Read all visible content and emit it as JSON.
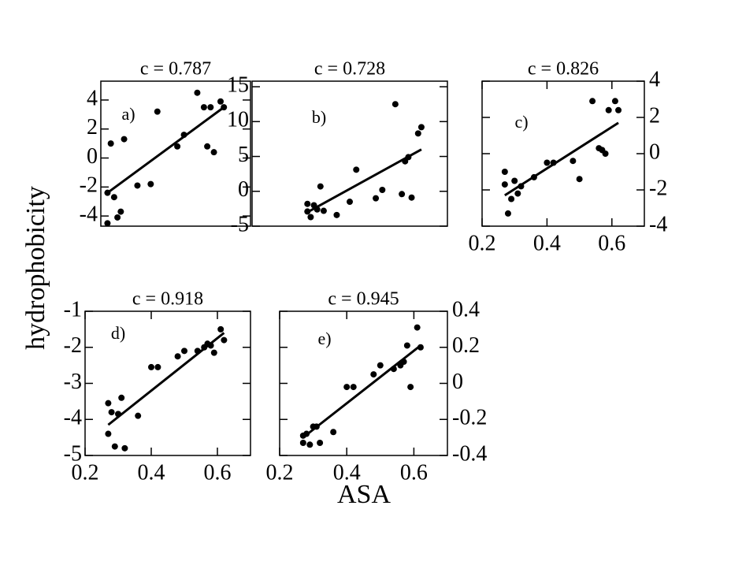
{
  "figure": {
    "xlabel": "ASA",
    "ylabel": "hydrophobicity"
  },
  "chart_data": [
    {
      "type": "scatter",
      "title": "c = 0.787",
      "label": "a)",
      "color": "#000000",
      "yaxis_side": "left",
      "xlim": [
        0.25,
        0.7
      ],
      "ylim": [
        -4.7,
        5.3
      ],
      "yticks": [
        -4,
        -2,
        0,
        2,
        4
      ],
      "x": [
        0.27,
        0.27,
        0.28,
        0.29,
        0.3,
        0.31,
        0.32,
        0.36,
        0.4,
        0.42,
        0.48,
        0.5,
        0.54,
        0.56,
        0.57,
        0.58,
        0.59,
        0.61,
        0.62
      ],
      "values": [
        -2.4,
        -4.5,
        1.0,
        -2.7,
        -4.1,
        -3.7,
        1.3,
        -1.9,
        -1.8,
        3.2,
        0.8,
        1.6,
        4.5,
        3.5,
        0.8,
        3.5,
        0.4,
        3.9,
        3.5
      ],
      "fit": {
        "x": [
          0.27,
          0.62
        ],
        "y": [
          -2.4,
          3.5
        ]
      }
    },
    {
      "type": "scatter",
      "title": "c = 0.728",
      "label": "b)",
      "color": "#000000",
      "yaxis_side": "left",
      "xlim": [
        0.1,
        0.7
      ],
      "ylim": [
        -5,
        15.8
      ],
      "yticks": [
        -5,
        0,
        5,
        10,
        15
      ],
      "x": [
        0.27,
        0.27,
        0.28,
        0.29,
        0.3,
        0.31,
        0.32,
        0.36,
        0.4,
        0.42,
        0.48,
        0.5,
        0.54,
        0.56,
        0.57,
        0.58,
        0.59,
        0.61,
        0.62
      ],
      "values": [
        -1.8,
        -2.9,
        -3.7,
        -2.0,
        -2.6,
        0.7,
        -2.8,
        -3.4,
        -1.5,
        3.1,
        -1.0,
        0.2,
        12.5,
        -0.4,
        4.3,
        4.9,
        -0.9,
        8.3,
        9.2
      ],
      "fit": {
        "x": [
          0.27,
          0.62
        ],
        "y": [
          -3.0,
          6.0
        ]
      }
    },
    {
      "type": "scatter",
      "title": "c = 0.826",
      "label": "c)",
      "color": "#000000",
      "yaxis_side": "right",
      "xlim": [
        0.2,
        0.7
      ],
      "ylim": [
        -4,
        4
      ],
      "yticks": [
        -4,
        -2,
        0,
        2,
        4
      ],
      "xticks": [
        0.2,
        0.4,
        0.6
      ],
      "x": [
        0.27,
        0.27,
        0.28,
        0.29,
        0.3,
        0.31,
        0.32,
        0.36,
        0.4,
        0.42,
        0.48,
        0.5,
        0.54,
        0.56,
        0.57,
        0.58,
        0.59,
        0.61,
        0.62
      ],
      "values": [
        -1.0,
        -1.7,
        -3.3,
        -2.5,
        -1.5,
        -2.2,
        -1.8,
        -1.3,
        -0.5,
        -0.5,
        -0.4,
        -1.4,
        2.9,
        0.3,
        0.2,
        0,
        2.4,
        2.9,
        2.4
      ],
      "fit": {
        "x": [
          0.27,
          0.62
        ],
        "y": [
          -2.3,
          1.7
        ]
      }
    },
    {
      "type": "scatter",
      "title": "c = 0.918",
      "label": "d)",
      "color": "#000000",
      "yaxis_side": "left",
      "xlim": [
        0.2,
        0.7
      ],
      "ylim": [
        -5,
        -1
      ],
      "yticks": [
        -5,
        -4,
        -3,
        -2,
        -1
      ],
      "xticks": [
        0.2,
        0.4,
        0.6
      ],
      "x": [
        0.27,
        0.27,
        0.28,
        0.29,
        0.3,
        0.31,
        0.32,
        0.36,
        0.4,
        0.42,
        0.48,
        0.5,
        0.54,
        0.56,
        0.57,
        0.58,
        0.59,
        0.61,
        0.62
      ],
      "values": [
        -3.55,
        -4.4,
        -3.8,
        -4.75,
        -3.85,
        -3.4,
        -4.8,
        -3.9,
        -2.55,
        -2.55,
        -2.25,
        -2.1,
        -2.1,
        -2.0,
        -1.9,
        -1.95,
        -2.15,
        -1.5,
        -1.8
      ],
      "fit": {
        "x": [
          0.27,
          0.62
        ],
        "y": [
          -4.15,
          -1.6
        ]
      }
    },
    {
      "type": "scatter",
      "title": "c = 0.945",
      "label": "e)",
      "color": "#000000",
      "yaxis_side": "right",
      "xlim": [
        0.2,
        0.7
      ],
      "ylim": [
        -0.4,
        0.4
      ],
      "yticks": [
        -0.4,
        -0.2,
        0,
        0.2,
        0.4
      ],
      "xticks": [
        0.2,
        0.4,
        0.6
      ],
      "x": [
        0.27,
        0.27,
        0.28,
        0.29,
        0.3,
        0.31,
        0.32,
        0.36,
        0.4,
        0.42,
        0.48,
        0.5,
        0.54,
        0.56,
        0.57,
        0.58,
        0.59,
        0.61,
        0.62
      ],
      "values": [
        -0.33,
        -0.29,
        -0.28,
        -0.34,
        -0.24,
        -0.24,
        -0.33,
        -0.27,
        -0.02,
        -0.02,
        0.05,
        0.1,
        0.08,
        0.1,
        0.12,
        0.21,
        -0.02,
        0.31,
        0.2
      ],
      "fit": {
        "x": [
          0.27,
          0.62
        ],
        "y": [
          -0.3,
          0.21
        ]
      }
    }
  ]
}
